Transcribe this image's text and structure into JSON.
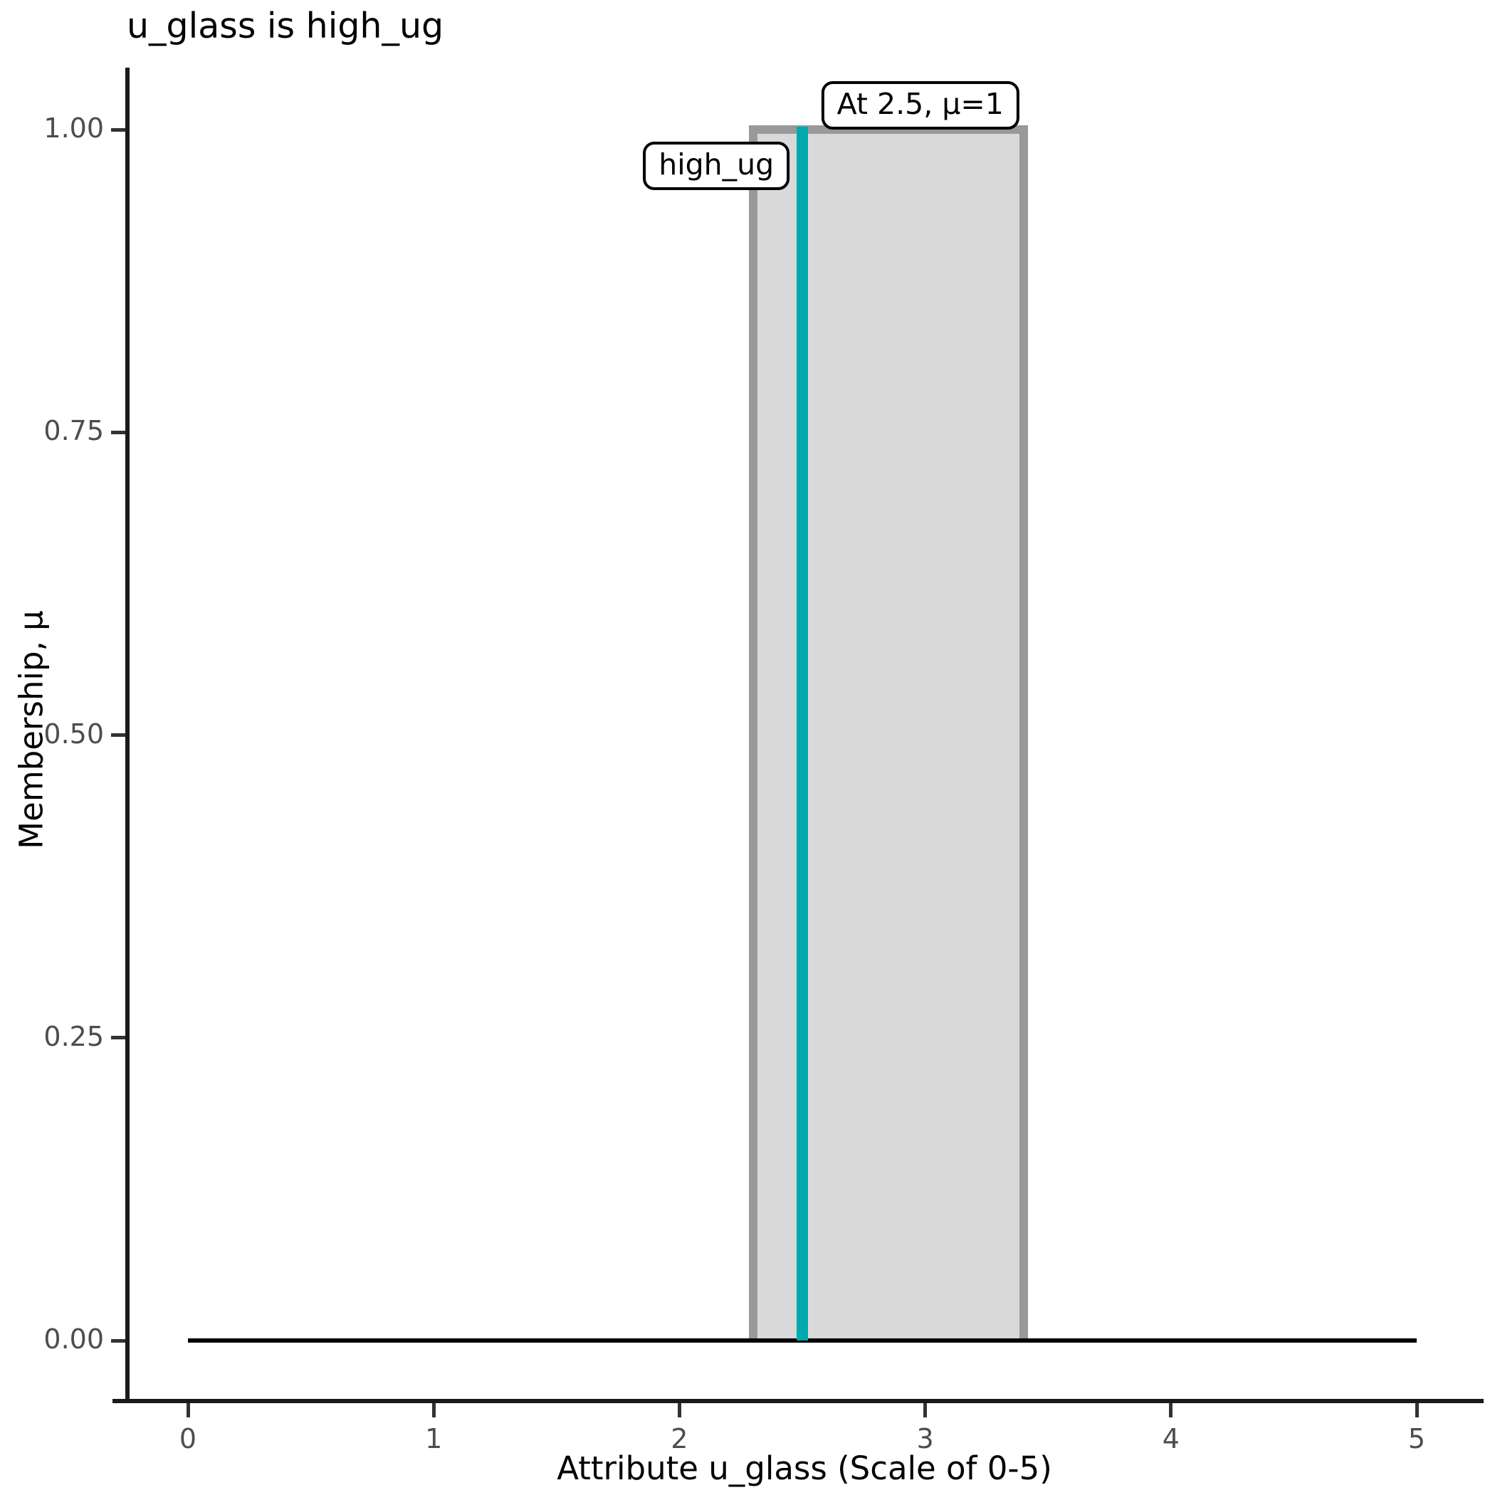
{
  "chart_data": {
    "type": "area",
    "title": "u_glass is high_ug",
    "xlabel": "Attribute u_glass (Scale of 0-5)",
    "ylabel": "Membership, μ",
    "xlim": [
      0,
      5
    ],
    "ylim": [
      0,
      1
    ],
    "grid": false,
    "legend": "none",
    "xticks": [
      {
        "value": 0,
        "label": "0"
      },
      {
        "value": 1,
        "label": "1"
      },
      {
        "value": 2,
        "label": "2"
      },
      {
        "value": 3,
        "label": "3"
      },
      {
        "value": 4,
        "label": "4"
      },
      {
        "value": 5,
        "label": "5"
      }
    ],
    "yticks": [
      {
        "value": 0,
        "label": "0.00"
      },
      {
        "value": 0.25,
        "label": "0.25"
      },
      {
        "value": 0.5,
        "label": "0.50"
      },
      {
        "value": 0.75,
        "label": "0.75"
      },
      {
        "value": 1,
        "label": "1.00"
      }
    ],
    "membership_function": {
      "name": "high_ug",
      "shape": "crisp-rectangle",
      "x_start": 2.3,
      "x_end": 3.4,
      "mu_max": 1,
      "fill_color": "#d9d9d9",
      "outline_color": "#999999"
    },
    "baseline": {
      "mu": 0,
      "x_start": 0,
      "x_end": 5,
      "color": "#000000"
    },
    "marker": {
      "x": 2.5,
      "mu": 1,
      "color": "#00a9ac"
    },
    "annotations": [
      {
        "id": "marker-label",
        "text": "At 2.5, μ=1",
        "x": 2.98,
        "mu": 1.02
      },
      {
        "id": "set-label",
        "text": "high_ug",
        "x": 2.15,
        "mu": 0.97
      }
    ],
    "colors": {
      "axis": "#1a1a1a",
      "tick": "#333333",
      "tick_label": "#4d4d4d",
      "text": "#000000",
      "background": "#ffffff"
    }
  }
}
